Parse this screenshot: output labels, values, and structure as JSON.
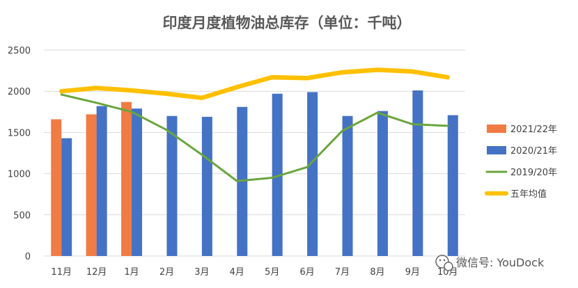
{
  "chart_data": {
    "type": "bar",
    "title": "印度月度植物油总库存（单位：千吨）",
    "xlabel": "",
    "ylabel": "",
    "categories": [
      "11月",
      "12月",
      "1月",
      "2月",
      "3月",
      "4月",
      "5月",
      "6月",
      "7月",
      "8月",
      "9月",
      "10月"
    ],
    "ylim": [
      0,
      2500
    ],
    "yticks": [
      "0",
      "500",
      "1000",
      "1500",
      "2000",
      "2500"
    ],
    "grid": true,
    "legend_position": "right",
    "series": [
      {
        "name": "2021/22年",
        "kind": "bar",
        "color": "#f07c44",
        "values": [
          1660,
          1720,
          1870,
          null,
          null,
          null,
          null,
          null,
          null,
          null,
          null,
          null
        ]
      },
      {
        "name": "2020/21年",
        "kind": "bar",
        "color": "#4472c4",
        "values": [
          1430,
          1820,
          1790,
          1700,
          1690,
          1810,
          1970,
          1990,
          1700,
          1760,
          2010,
          1710
        ]
      },
      {
        "name": "2019/20年",
        "kind": "line",
        "color": "#6aa63c",
        "values": [
          1960,
          1860,
          1750,
          1530,
          1230,
          910,
          950,
          1080,
          1520,
          1740,
          1600,
          1580
        ]
      },
      {
        "name": "五年均值",
        "kind": "line",
        "color": "#ffc000",
        "values": [
          2000,
          2040,
          2010,
          1970,
          1920,
          2050,
          2170,
          2160,
          2230,
          2260,
          2240,
          2170
        ]
      }
    ]
  },
  "watermark": "微信号: YouDock"
}
